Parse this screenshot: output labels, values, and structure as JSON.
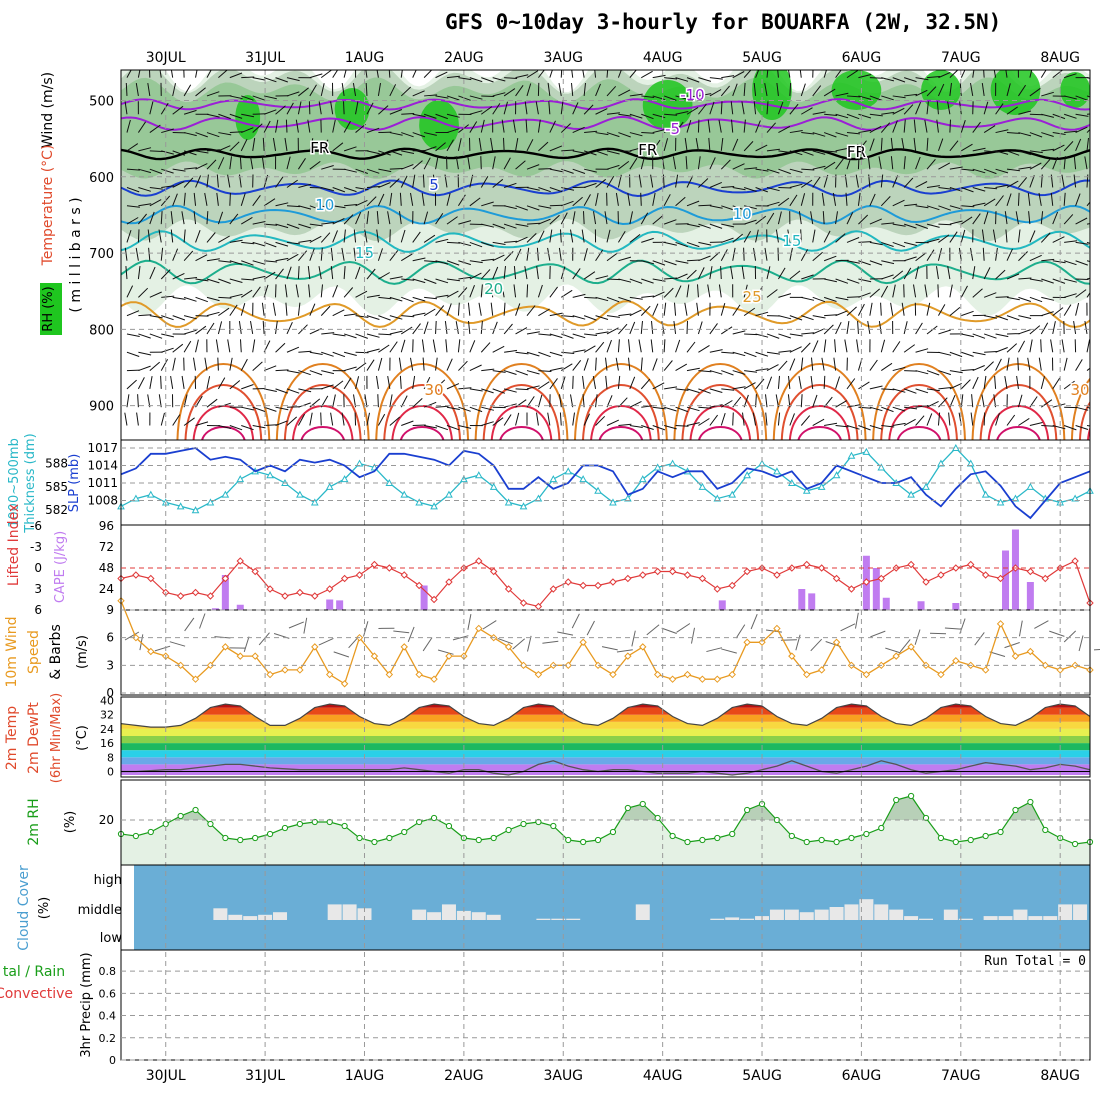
{
  "title": "GFS 0~10day 3-hourly for BOUARFA (2W, 32.5N)",
  "colors": {
    "rh_green": "#1fc61f",
    "rh_light": "#e4f1e4",
    "rh_mid": "#bcd4bc",
    "wind": "#9b1fd6",
    "temp": "#e04a2c",
    "rh_text": "#1a9e1a",
    "slp": "#1a3fd0",
    "thickness": "#2ab8c8",
    "cape": "#c07cf0",
    "lifted": "#e03a3a",
    "wind10": "#e89a20",
    "cloud": "#6aaed6",
    "cloud_frac": "#e8e8e8",
    "precip_green": "#1a9e1a",
    "precip_red": "#e03a3a"
  },
  "time_axis": {
    "date_labels": [
      "30JUL",
      "31JUL",
      "1AUG",
      "2AUG",
      "3AUG",
      "4AUG",
      "5AUG",
      "6AUG",
      "7AUG",
      "8AUG"
    ],
    "start_day": -0.45,
    "end_day": 9.3
  },
  "panels": {
    "upper_air": {
      "ylabel_left_a": "Wind (m/s)",
      "ylabel_left_b": "Temperature (°C)",
      "ylabel_left_c": "RH (%)",
      "ylabel_right": "( m i l l i b a r s )",
      "pressure_ticks": [
        "500",
        "600",
        "700",
        "800",
        "900"
      ],
      "isotherm_labels": [
        "-10",
        "-5",
        "FR",
        "FR",
        "FR",
        "5",
        "10",
        "10",
        "15",
        "15",
        "20",
        "25",
        "30",
        "30"
      ]
    },
    "slp": {
      "ylabel_a": "1000~500mb",
      "ylabel_b": "Thickness (dm)",
      "ylabel_c": "SLP (mb)",
      "thickness_ticks": [
        "588",
        "585",
        "582"
      ],
      "slp_ticks": [
        "1017",
        "1014",
        "1011",
        "1008"
      ]
    },
    "cape": {
      "ylabel_a": "Lifted Index",
      "ylabel_b": "CAPE (J/kg)",
      "li_ticks": [
        "-6",
        "-3",
        "0",
        "3",
        "6"
      ],
      "cape_ticks": [
        "96",
        "72",
        "48",
        "24"
      ]
    },
    "wind10": {
      "ylabel_a": "10m Wind",
      "ylabel_b": "Speed",
      "ylabel_c": "& Barbs",
      "unit": "(m/s)",
      "ticks": [
        "9",
        "6",
        "3",
        "0"
      ]
    },
    "temp2m": {
      "ylabel_a": "2m Temp",
      "ylabel_b": "2m DewPt",
      "ylabel_c": "(6hr Min/Max)",
      "unit": "(°C)",
      "ticks": [
        "40",
        "32",
        "24",
        "16",
        "8",
        "0"
      ]
    },
    "rh2m": {
      "ylabel": "2m RH",
      "unit": "(%)",
      "ticks": [
        "20"
      ]
    },
    "cloud": {
      "ylabel_a": "Cloud Cover",
      "unit": "(%)",
      "levels": [
        "high",
        "middle",
        "low"
      ]
    },
    "precip": {
      "ylabel_a": "tal / Rain",
      "ylabel_b": "Convective",
      "ylabel_c": "3hr Precip (mm)",
      "run_total": "Run Total = 0",
      "ticks": [
        "0.8",
        "0.6",
        "0.4",
        "0.2",
        "0"
      ]
    }
  },
  "chart_data": [
    {
      "type": "line",
      "name": "SLP",
      "x_days": [
        -0.45,
        -0.3,
        -0.15,
        0,
        0.15,
        0.3,
        0.45,
        0.6,
        0.75,
        0.9,
        1.05,
        1.2,
        1.35,
        1.5,
        1.65,
        1.8,
        1.95,
        2.1,
        2.25,
        2.4,
        2.55,
        2.7,
        2.85,
        3.0,
        3.15,
        3.3,
        3.45,
        3.6,
        3.75,
        3.9,
        4.05,
        4.2,
        4.35,
        4.5,
        4.65,
        4.8,
        4.95,
        5.1,
        5.25,
        5.4,
        5.55,
        5.7,
        5.85,
        6.0,
        6.15,
        6.3,
        6.45,
        6.6,
        6.75,
        6.9,
        7.05,
        7.2,
        7.35,
        7.5,
        7.65,
        7.8,
        7.95,
        8.1,
        8.25,
        8.4,
        8.55,
        8.7,
        8.85,
        9.0,
        9.15,
        9.3
      ],
      "values": [
        1012.5,
        1013.5,
        1016,
        1016,
        1016.5,
        1017,
        1015,
        1015.5,
        1015,
        1013,
        1014,
        1013,
        1015,
        1014.5,
        1015,
        1014,
        1012,
        1013,
        1016,
        1016,
        1015.5,
        1015,
        1014,
        1016.5,
        1016,
        1014,
        1010,
        1010,
        1012,
        1010,
        1011,
        1014,
        1014,
        1013,
        1009,
        1010,
        1013,
        1012,
        1013,
        1013,
        1010,
        1011,
        1013.5,
        1013,
        1012,
        1013,
        1010,
        1011,
        1014,
        1013,
        1012,
        1011,
        1011,
        1012,
        1009,
        1007,
        1010,
        1012.5,
        1013,
        1010.5,
        1007,
        1005,
        1008,
        1011,
        1012,
        1013
      ]
    },
    {
      "type": "line",
      "name": "1000~500mb Thickness",
      "x_days": [
        -0.45,
        -0.3,
        -0.15,
        0,
        0.15,
        0.3,
        0.45,
        0.6,
        0.75,
        0.9,
        1.05,
        1.2,
        1.35,
        1.5,
        1.65,
        1.8,
        1.95,
        2.1,
        2.25,
        2.4,
        2.55,
        2.7,
        2.85,
        3.0,
        3.15,
        3.3,
        3.45,
        3.6,
        3.75,
        3.9,
        4.05,
        4.2,
        4.35,
        4.5,
        4.65,
        4.8,
        4.95,
        5.1,
        5.25,
        5.4,
        5.55,
        5.7,
        5.85,
        6.0,
        6.15,
        6.3,
        6.45,
        6.6,
        6.75,
        6.9,
        7.05,
        7.2,
        7.35,
        7.5,
        7.65,
        7.8,
        7.95,
        8.1,
        8.25,
        8.4,
        8.55,
        8.7,
        8.85,
        9.0,
        9.15,
        9.3
      ],
      "values": [
        582.5,
        583.5,
        584,
        583,
        582.5,
        582,
        583,
        584,
        586,
        587,
        586.5,
        585.5,
        584,
        583,
        585,
        586,
        588,
        587.5,
        585.5,
        584,
        583,
        582.5,
        584,
        586,
        586.5,
        585,
        583,
        582.5,
        583.5,
        586,
        587,
        586,
        584.5,
        583,
        583.5,
        586,
        587.5,
        588,
        587,
        585,
        583.5,
        584,
        586.5,
        588,
        587,
        585.5,
        584.5,
        585,
        586.5,
        589,
        589.5,
        587.5,
        585.5,
        584,
        585,
        588,
        590,
        588,
        584,
        583,
        583.5,
        585,
        583.5,
        583,
        583.5,
        584.5
      ]
    },
    {
      "type": "bar",
      "name": "CAPE",
      "x_days": [
        0.5,
        0.6,
        0.75,
        1.65,
        1.75,
        2.6,
        5.6,
        6.4,
        6.5,
        7.05,
        7.15,
        7.25,
        7.6,
        7.95,
        8.45,
        8.55,
        8.7
      ],
      "values": [
        2,
        40,
        6,
        12,
        11,
        28,
        11,
        24,
        19,
        62,
        48,
        14,
        10,
        8,
        68,
        92,
        32
      ]
    },
    {
      "type": "line",
      "name": "Lifted Index",
      "x_days": [
        -0.45,
        -0.3,
        -0.15,
        0,
        0.15,
        0.3,
        0.45,
        0.6,
        0.75,
        0.9,
        1.05,
        1.2,
        1.35,
        1.5,
        1.65,
        1.8,
        1.95,
        2.1,
        2.25,
        2.4,
        2.55,
        2.7,
        2.85,
        3.0,
        3.15,
        3.3,
        3.45,
        3.6,
        3.75,
        3.9,
        4.05,
        4.2,
        4.35,
        4.5,
        4.65,
        4.8,
        4.95,
        5.1,
        5.25,
        5.4,
        5.55,
        5.7,
        5.85,
        6.0,
        6.15,
        6.3,
        6.45,
        6.6,
        6.75,
        6.9,
        7.05,
        7.2,
        7.35,
        7.5,
        7.65,
        7.8,
        7.95,
        8.1,
        8.25,
        8.4,
        8.55,
        8.7,
        8.85,
        9.0,
        9.15,
        9.3
      ],
      "values": [
        1.5,
        1,
        1.5,
        3.5,
        4,
        3.5,
        4,
        1.5,
        -1,
        0.5,
        3,
        4,
        3.5,
        4,
        3,
        1.5,
        1,
        -0.5,
        0,
        1,
        2.5,
        4.5,
        2,
        0,
        -1,
        0.5,
        3,
        5,
        5.5,
        3,
        2,
        2.5,
        2.5,
        2,
        1.5,
        1,
        0.5,
        0.5,
        1,
        1.5,
        3,
        2.5,
        0.5,
        0,
        1,
        0,
        -0.5,
        0,
        1.5,
        3,
        2,
        1.5,
        0,
        -0.5,
        2,
        1,
        0,
        -0.5,
        1,
        1.5,
        0,
        0.5,
        1.5,
        0,
        -1,
        5
      ]
    },
    {
      "type": "line",
      "name": "10m Wind Speed",
      "x_days": [
        -0.45,
        -0.3,
        -0.15,
        0,
        0.15,
        0.3,
        0.45,
        0.6,
        0.75,
        0.9,
        1.05,
        1.2,
        1.35,
        1.5,
        1.65,
        1.8,
        1.95,
        2.1,
        2.25,
        2.4,
        2.55,
        2.7,
        2.85,
        3.0,
        3.15,
        3.3,
        3.45,
        3.6,
        3.75,
        3.9,
        4.05,
        4.2,
        4.35,
        4.5,
        4.65,
        4.8,
        4.95,
        5.1,
        5.25,
        5.4,
        5.55,
        5.7,
        5.85,
        6.0,
        6.15,
        6.3,
        6.45,
        6.6,
        6.75,
        6.9,
        7.05,
        7.2,
        7.35,
        7.5,
        7.65,
        7.8,
        7.95,
        8.1,
        8.25,
        8.4,
        8.55,
        8.7,
        8.85,
        9.0,
        9.15,
        9.3
      ],
      "values": [
        10,
        6,
        4.5,
        4,
        3,
        1.5,
        3,
        5,
        4,
        4,
        2,
        2.5,
        2.5,
        5,
        2,
        1,
        6,
        4,
        2,
        5,
        2,
        1.5,
        4,
        4,
        7,
        6,
        5,
        3,
        2,
        3,
        3,
        5.5,
        3,
        2,
        4,
        5,
        2,
        1.5,
        2,
        1.5,
        1.5,
        2,
        5.5,
        5.5,
        7,
        4,
        2,
        2.5,
        5.5,
        3,
        2,
        3,
        4,
        5,
        3,
        2,
        3.5,
        3,
        2.5,
        7.5,
        4,
        4.5,
        3,
        2.5,
        3,
        2.5
      ]
    },
    {
      "type": "area",
      "name": "2m Temp",
      "x_days": [
        -0.45,
        -0.3,
        -0.15,
        0,
        0.15,
        0.3,
        0.45,
        0.6,
        0.75,
        0.9,
        1.05,
        1.2,
        1.35,
        1.5,
        1.65,
        1.8,
        1.95,
        2.1,
        2.25,
        2.4,
        2.55,
        2.7,
        2.85,
        3.0,
        3.15,
        3.3,
        3.45,
        3.6,
        3.75,
        3.9,
        4.05,
        4.2,
        4.35,
        4.5,
        4.65,
        4.8,
        4.95,
        5.1,
        5.25,
        5.4,
        5.55,
        5.7,
        5.85,
        6.0,
        6.15,
        6.3,
        6.45,
        6.6,
        6.75,
        6.9,
        7.05,
        7.2,
        7.35,
        7.5,
        7.65,
        7.8,
        7.95,
        8.1,
        8.25,
        8.4,
        8.55,
        8.7,
        8.85,
        9.0,
        9.15,
        9.3
      ],
      "values": [
        27,
        26,
        25,
        25,
        26,
        30,
        36,
        38,
        37,
        31,
        26,
        26,
        30,
        36,
        38,
        37,
        31,
        27,
        26,
        30,
        36,
        38,
        37,
        31,
        27,
        26,
        30,
        36,
        38,
        37,
        31,
        27,
        26,
        30,
        36,
        38,
        37,
        31,
        27,
        26,
        30,
        36,
        38,
        37,
        31,
        27,
        26,
        30,
        36,
        38,
        37,
        31,
        27,
        26,
        30,
        36,
        38,
        37,
        31,
        27,
        26,
        30,
        36,
        38,
        37,
        31
      ]
    },
    {
      "type": "line",
      "name": "2m DewPt",
      "x_days": [
        -0.45,
        -0.3,
        -0.15,
        0,
        0.15,
        0.3,
        0.45,
        0.6,
        0.75,
        0.9,
        1.05,
        1.2,
        1.35,
        1.5,
        1.65,
        1.8,
        1.95,
        2.1,
        2.25,
        2.4,
        2.55,
        2.7,
        2.85,
        3.0,
        3.15,
        3.3,
        3.45,
        3.6,
        3.75,
        3.9,
        4.05,
        4.2,
        4.35,
        4.5,
        4.65,
        4.8,
        4.95,
        5.1,
        5.25,
        5.4,
        5.55,
        5.7,
        5.85,
        6.0,
        6.15,
        6.3,
        6.45,
        6.6,
        6.75,
        6.9,
        7.05,
        7.2,
        7.35,
        7.5,
        7.65,
        7.8,
        7.95,
        8.1,
        8.25,
        8.4,
        8.55,
        8.7,
        8.85,
        9.0,
        9.15,
        9.3
      ],
      "values": [
        0,
        0,
        0.5,
        1,
        1,
        2,
        3,
        4,
        4,
        3,
        2,
        1.5,
        1,
        1,
        1,
        1,
        1,
        1,
        1,
        2,
        1,
        0,
        -1,
        1,
        1,
        -1,
        -2,
        0,
        4,
        6,
        3,
        1,
        0,
        1,
        1,
        0,
        -1,
        -1,
        -1,
        0,
        -1,
        -2,
        -1,
        1,
        3,
        6,
        3,
        0,
        -1,
        1,
        3,
        6,
        4,
        1,
        -1,
        0,
        1,
        3,
        5,
        4,
        3,
        1,
        2,
        4,
        3,
        1
      ]
    },
    {
      "type": "line",
      "name": "2m RH",
      "x_days": [
        -0.45,
        -0.3,
        -0.15,
        0,
        0.15,
        0.3,
        0.45,
        0.6,
        0.75,
        0.9,
        1.05,
        1.2,
        1.35,
        1.5,
        1.65,
        1.8,
        1.95,
        2.1,
        2.25,
        2.4,
        2.55,
        2.7,
        2.85,
        3.0,
        3.15,
        3.3,
        3.45,
        3.6,
        3.75,
        3.9,
        4.05,
        4.2,
        4.35,
        4.5,
        4.65,
        4.8,
        4.95,
        5.1,
        5.25,
        5.4,
        5.55,
        5.7,
        5.85,
        6.0,
        6.15,
        6.3,
        6.45,
        6.6,
        6.75,
        6.9,
        7.05,
        7.2,
        7.35,
        7.5,
        7.65,
        7.8,
        7.95,
        8.1,
        8.25,
        8.4,
        8.55,
        8.7,
        8.85,
        9.0,
        9.15,
        9.3
      ],
      "values": [
        13,
        12,
        14,
        18,
        22,
        25,
        18,
        11,
        10,
        11,
        13,
        16,
        18,
        19,
        19,
        17,
        11,
        9,
        11,
        14,
        19,
        21,
        17,
        11,
        10,
        11,
        15,
        18,
        19,
        17,
        10,
        9,
        10,
        14,
        26,
        28,
        21,
        12,
        9,
        10,
        11,
        13,
        25,
        28,
        20,
        12,
        9,
        10,
        9,
        11,
        13,
        16,
        30,
        32,
        21,
        11,
        9,
        10,
        12,
        14,
        25,
        29,
        15,
        11,
        8,
        9
      ]
    },
    {
      "type": "bar",
      "name": "Cloud Cover",
      "x_days": [
        0.55,
        0.7,
        0.85,
        1.0,
        1.15,
        1.7,
        1.85,
        2.0,
        2.55,
        2.7,
        2.85,
        3.0,
        3.15,
        3.3,
        3.8,
        3.95,
        4.1,
        4.8,
        5.55,
        5.7,
        5.85,
        6.0,
        6.15,
        6.3,
        6.45,
        6.6,
        6.75,
        6.9,
        7.05,
        7.2,
        7.35,
        7.5,
        7.65,
        7.9,
        8.05,
        8.3,
        8.45,
        8.6,
        8.75,
        8.9,
        9.05,
        9.2
      ],
      "values": [
        45,
        20,
        15,
        20,
        30,
        60,
        60,
        45,
        40,
        30,
        60,
        35,
        30,
        20,
        5,
        5,
        5,
        60,
        5,
        10,
        5,
        15,
        40,
        40,
        30,
        40,
        50,
        60,
        80,
        60,
        40,
        15,
        5,
        40,
        5,
        15,
        15,
        40,
        15,
        15,
        60,
        60
      ]
    }
  ]
}
